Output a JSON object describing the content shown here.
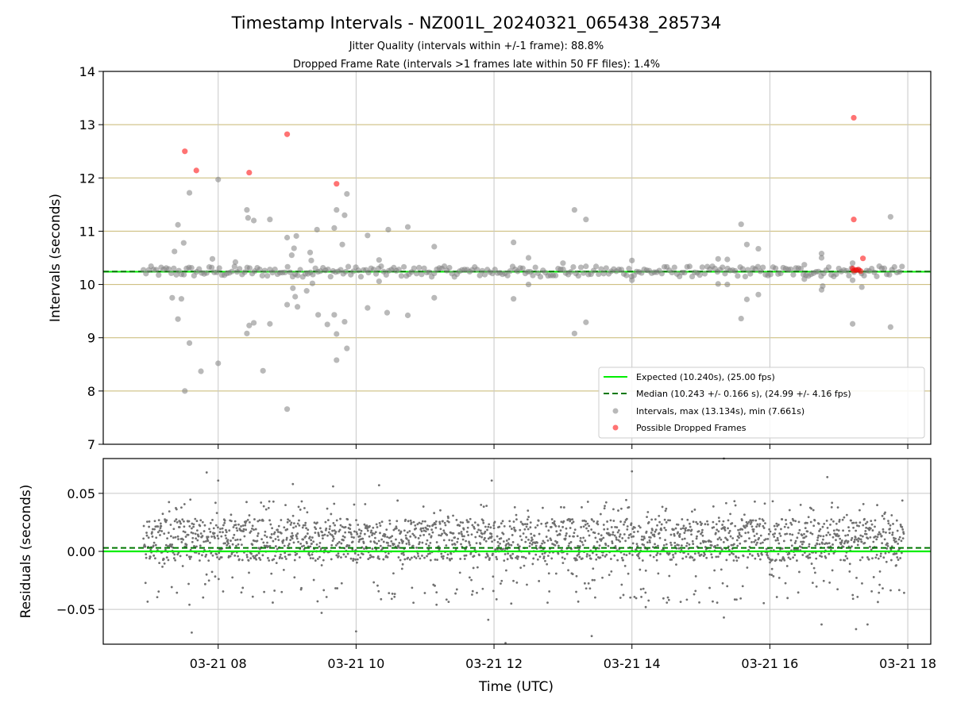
{
  "title": "Timestamp Intervals - NZ001L_20240321_065438_285734",
  "subtitle_line1": "Jitter Quality (intervals within +/-1 frame): 88.8%",
  "subtitle_line2": "Dropped Frame Rate (intervals >1 frames late within 50 FF files): 1.4%",
  "colors": {
    "expected": "#00ee00",
    "median": "#007700",
    "intervals": "#808080",
    "dropped": "#ff0000",
    "hgrid": "#c8b872",
    "vgrid": "#c8c8c8",
    "residuals": "#707070"
  },
  "chart_data": [
    {
      "type": "scatter",
      "panel": "top",
      "ylabel": "Intervals (seconds)",
      "ylim": [
        7,
        14
      ],
      "yticks": [
        "7",
        "8",
        "9",
        "10",
        "11",
        "12",
        "13",
        "14"
      ],
      "xlim": [
        "2024-03-21 06:20",
        "2024-03-21 18:20"
      ],
      "grid": true,
      "legend_position": "lower-right",
      "expected_value": 10.24,
      "median_value": 10.243,
      "legend": [
        "Expected (10.240s), (25.00 fps)",
        "Median (10.243 +/- 0.166 s), (24.99 +/- 4.16 fps)",
        "Intervals, max (13.134s), min (7.661s)",
        "Possible Dropped Frames"
      ],
      "series": [
        {
          "name": "Intervals, max (13.134s), min (7.661s)",
          "points": [
            [
              "2024-03-21 07:25",
              11.12
            ],
            [
              "2024-03-21 07:22",
              10.62
            ],
            [
              "2024-03-21 07:30",
              10.78
            ],
            [
              "2024-03-21 07:35",
              11.72
            ],
            [
              "2024-03-21 07:20",
              9.75
            ],
            [
              "2024-03-21 07:28",
              9.73
            ],
            [
              "2024-03-21 07:25",
              9.35
            ],
            [
              "2024-03-21 07:35",
              8.9
            ],
            [
              "2024-03-21 07:45",
              8.37
            ],
            [
              "2024-03-21 07:31",
              8.0
            ],
            [
              "2024-03-21 08:00",
              11.97
            ],
            [
              "2024-03-21 08:00",
              8.52
            ],
            [
              "2024-03-21 07:55",
              10.48
            ],
            [
              "2024-03-21 08:15",
              10.42
            ],
            [
              "2024-03-21 08:25",
              11.4
            ],
            [
              "2024-03-21 08:26",
              11.25
            ],
            [
              "2024-03-21 08:31",
              11.2
            ],
            [
              "2024-03-21 08:45",
              11.22
            ],
            [
              "2024-03-21 08:25",
              9.08
            ],
            [
              "2024-03-21 08:27",
              9.23
            ],
            [
              "2024-03-21 08:31",
              9.28
            ],
            [
              "2024-03-21 08:45",
              9.26
            ],
            [
              "2024-03-21 08:39",
              8.38
            ],
            [
              "2024-03-21 09:00",
              10.88
            ],
            [
              "2024-03-21 09:08",
              10.91
            ],
            [
              "2024-03-21 09:06",
              10.68
            ],
            [
              "2024-03-21 09:04",
              10.55
            ],
            [
              "2024-03-21 09:00",
              9.62
            ],
            [
              "2024-03-21 09:05",
              9.93
            ],
            [
              "2024-03-21 09:07",
              9.77
            ],
            [
              "2024-03-21 09:09",
              9.58
            ],
            [
              "2024-03-21 09:00",
              7.66
            ],
            [
              "2024-03-21 09:20",
              10.6
            ],
            [
              "2024-03-21 09:21",
              10.45
            ],
            [
              "2024-03-21 09:17",
              9.88
            ],
            [
              "2024-03-21 09:22",
              10.02
            ],
            [
              "2024-03-21 09:26",
              11.03
            ],
            [
              "2024-03-21 09:27",
              9.43
            ],
            [
              "2024-03-21 09:35",
              9.25
            ],
            [
              "2024-03-21 09:41",
              11.06
            ],
            [
              "2024-03-21 09:43",
              11.4
            ],
            [
              "2024-03-21 09:48",
              10.75
            ],
            [
              "2024-03-21 09:50",
              11.3
            ],
            [
              "2024-03-21 09:52",
              11.7
            ],
            [
              "2024-03-21 09:41",
              9.43
            ],
            [
              "2024-03-21 09:43",
              9.07
            ],
            [
              "2024-03-21 09:43",
              8.58
            ],
            [
              "2024-03-21 09:50",
              9.3
            ],
            [
              "2024-03-21 09:52",
              8.8
            ],
            [
              "2024-03-21 10:10",
              10.92
            ],
            [
              "2024-03-21 10:20",
              10.46
            ],
            [
              "2024-03-21 10:10",
              9.56
            ],
            [
              "2024-03-21 10:20",
              10.06
            ],
            [
              "2024-03-21 10:28",
              11.03
            ],
            [
              "2024-03-21 10:27",
              9.47
            ],
            [
              "2024-03-21 10:45",
              11.08
            ],
            [
              "2024-03-21 10:45",
              9.42
            ],
            [
              "2024-03-21 11:08",
              10.71
            ],
            [
              "2024-03-21 11:08",
              9.75
            ],
            [
              "2024-03-21 12:17",
              10.79
            ],
            [
              "2024-03-21 12:17",
              9.73
            ],
            [
              "2024-03-21 12:30",
              10.5
            ],
            [
              "2024-03-21 12:30",
              10.0
            ],
            [
              "2024-03-21 13:00",
              10.4
            ],
            [
              "2024-03-21 13:10",
              11.4
            ],
            [
              "2024-03-21 13:20",
              11.22
            ],
            [
              "2024-03-21 13:10",
              9.08
            ],
            [
              "2024-03-21 13:20",
              9.29
            ],
            [
              "2024-03-21 14:00",
              10.45
            ],
            [
              "2024-03-21 14:00",
              10.08
            ],
            [
              "2024-03-21 15:15",
              10.48
            ],
            [
              "2024-03-21 15:15",
              10.01
            ],
            [
              "2024-03-21 15:23",
              10.47
            ],
            [
              "2024-03-21 15:23",
              10.0
            ],
            [
              "2024-03-21 15:35",
              11.13
            ],
            [
              "2024-03-21 15:35",
              9.36
            ],
            [
              "2024-03-21 15:40",
              10.75
            ],
            [
              "2024-03-21 15:40",
              9.72
            ],
            [
              "2024-03-21 15:50",
              10.67
            ],
            [
              "2024-03-21 15:50",
              9.81
            ],
            [
              "2024-03-21 16:30",
              10.37
            ],
            [
              "2024-03-21 16:30",
              10.1
            ],
            [
              "2024-03-21 16:45",
              10.58
            ],
            [
              "2024-03-21 16:45",
              10.5
            ],
            [
              "2024-03-21 16:45",
              9.9
            ],
            [
              "2024-03-21 16:46",
              9.97
            ],
            [
              "2024-03-21 17:12",
              10.4
            ],
            [
              "2024-03-21 17:12",
              10.08
            ],
            [
              "2024-03-21 17:12",
              9.26
            ],
            [
              "2024-03-21 17:20",
              9.95
            ],
            [
              "2024-03-21 17:45",
              11.27
            ],
            [
              "2024-03-21 17:45",
              9.2
            ]
          ]
        },
        {
          "name": "Possible Dropped Frames",
          "points": [
            [
              "2024-03-21 07:31",
              12.5
            ],
            [
              "2024-03-21 07:41",
              12.14
            ],
            [
              "2024-03-21 08:27",
              12.1
            ],
            [
              "2024-03-21 09:00",
              12.82
            ],
            [
              "2024-03-21 09:43",
              11.89
            ],
            [
              "2024-03-21 17:13",
              13.13
            ],
            [
              "2024-03-21 17:13",
              11.22
            ],
            [
              "2024-03-21 17:21",
              10.49
            ],
            [
              "2024-03-21 17:12",
              10.3
            ],
            [
              "2024-03-21 17:13",
              10.26
            ],
            [
              "2024-03-21 17:15",
              10.27
            ],
            [
              "2024-03-21 17:17",
              10.28
            ],
            [
              "2024-03-21 17:19",
              10.25
            ]
          ]
        }
      ]
    },
    {
      "type": "scatter",
      "panel": "bottom",
      "xlabel": "Time (UTC)",
      "ylabel": "Residuals (seconds)",
      "ylim": [
        -0.08,
        0.08
      ],
      "yticks": [
        "−0.05",
        "0.00",
        "0.05"
      ],
      "xticks": [
        "03-21 08",
        "03-21 10",
        "03-21 12",
        "03-21 14",
        "03-21 16",
        "03-21 18"
      ],
      "grid": true,
      "expected_value": 0.0,
      "median_value": 0.003,
      "series": [
        {
          "name": "Residuals",
          "points": [
            [
              "2024-03-21 07:50",
              0.068
            ],
            [
              "2024-03-21 08:00",
              0.061
            ],
            [
              "2024-03-21 09:05",
              0.058
            ],
            [
              "2024-03-21 09:40",
              0.056
            ],
            [
              "2024-03-21 10:20",
              0.057
            ],
            [
              "2024-03-21 11:58",
              0.061
            ],
            [
              "2024-03-21 14:00",
              0.069
            ],
            [
              "2024-03-21 15:20",
              0.08
            ],
            [
              "2024-03-21 16:50",
              0.064
            ],
            [
              "2024-03-21 07:35",
              -0.046
            ],
            [
              "2024-03-21 07:37",
              -0.07
            ],
            [
              "2024-03-21 09:30",
              -0.053
            ],
            [
              "2024-03-21 10:00",
              -0.069
            ],
            [
              "2024-03-21 11:10",
              -0.046
            ],
            [
              "2024-03-21 11:55",
              -0.059
            ],
            [
              "2024-03-21 12:10",
              -0.079
            ],
            [
              "2024-03-21 12:15",
              -0.045
            ],
            [
              "2024-03-21 13:25",
              -0.073
            ],
            [
              "2024-03-21 13:50",
              -0.04
            ],
            [
              "2024-03-21 14:12",
              -0.048
            ],
            [
              "2024-03-21 15:20",
              -0.057
            ],
            [
              "2024-03-21 16:45",
              -0.063
            ],
            [
              "2024-03-21 17:15",
              -0.067
            ],
            [
              "2024-03-21 17:25",
              -0.063
            ],
            [
              "2024-03-21 12:00",
              0.02
            ],
            [
              "2024-03-21 12:30",
              0.01
            ],
            [
              "2024-03-21 13:00",
              -0.01
            ],
            [
              "2024-03-21 14:30",
              0.025
            ],
            [
              "2024-03-21 15:00",
              0.015
            ],
            [
              "2024-03-21 16:00",
              -0.02
            ],
            [
              "2024-03-21 08:30",
              0.022
            ],
            [
              "2024-03-21 10:40",
              -0.015
            ],
            [
              "2024-03-21 11:20",
              0.03
            ],
            [
              "2024-03-21 17:00",
              0.018
            ],
            [
              "2024-03-21 17:50",
              -0.012
            ],
            [
              "2024-03-21 07:10",
              0.024
            ]
          ]
        }
      ]
    }
  ]
}
